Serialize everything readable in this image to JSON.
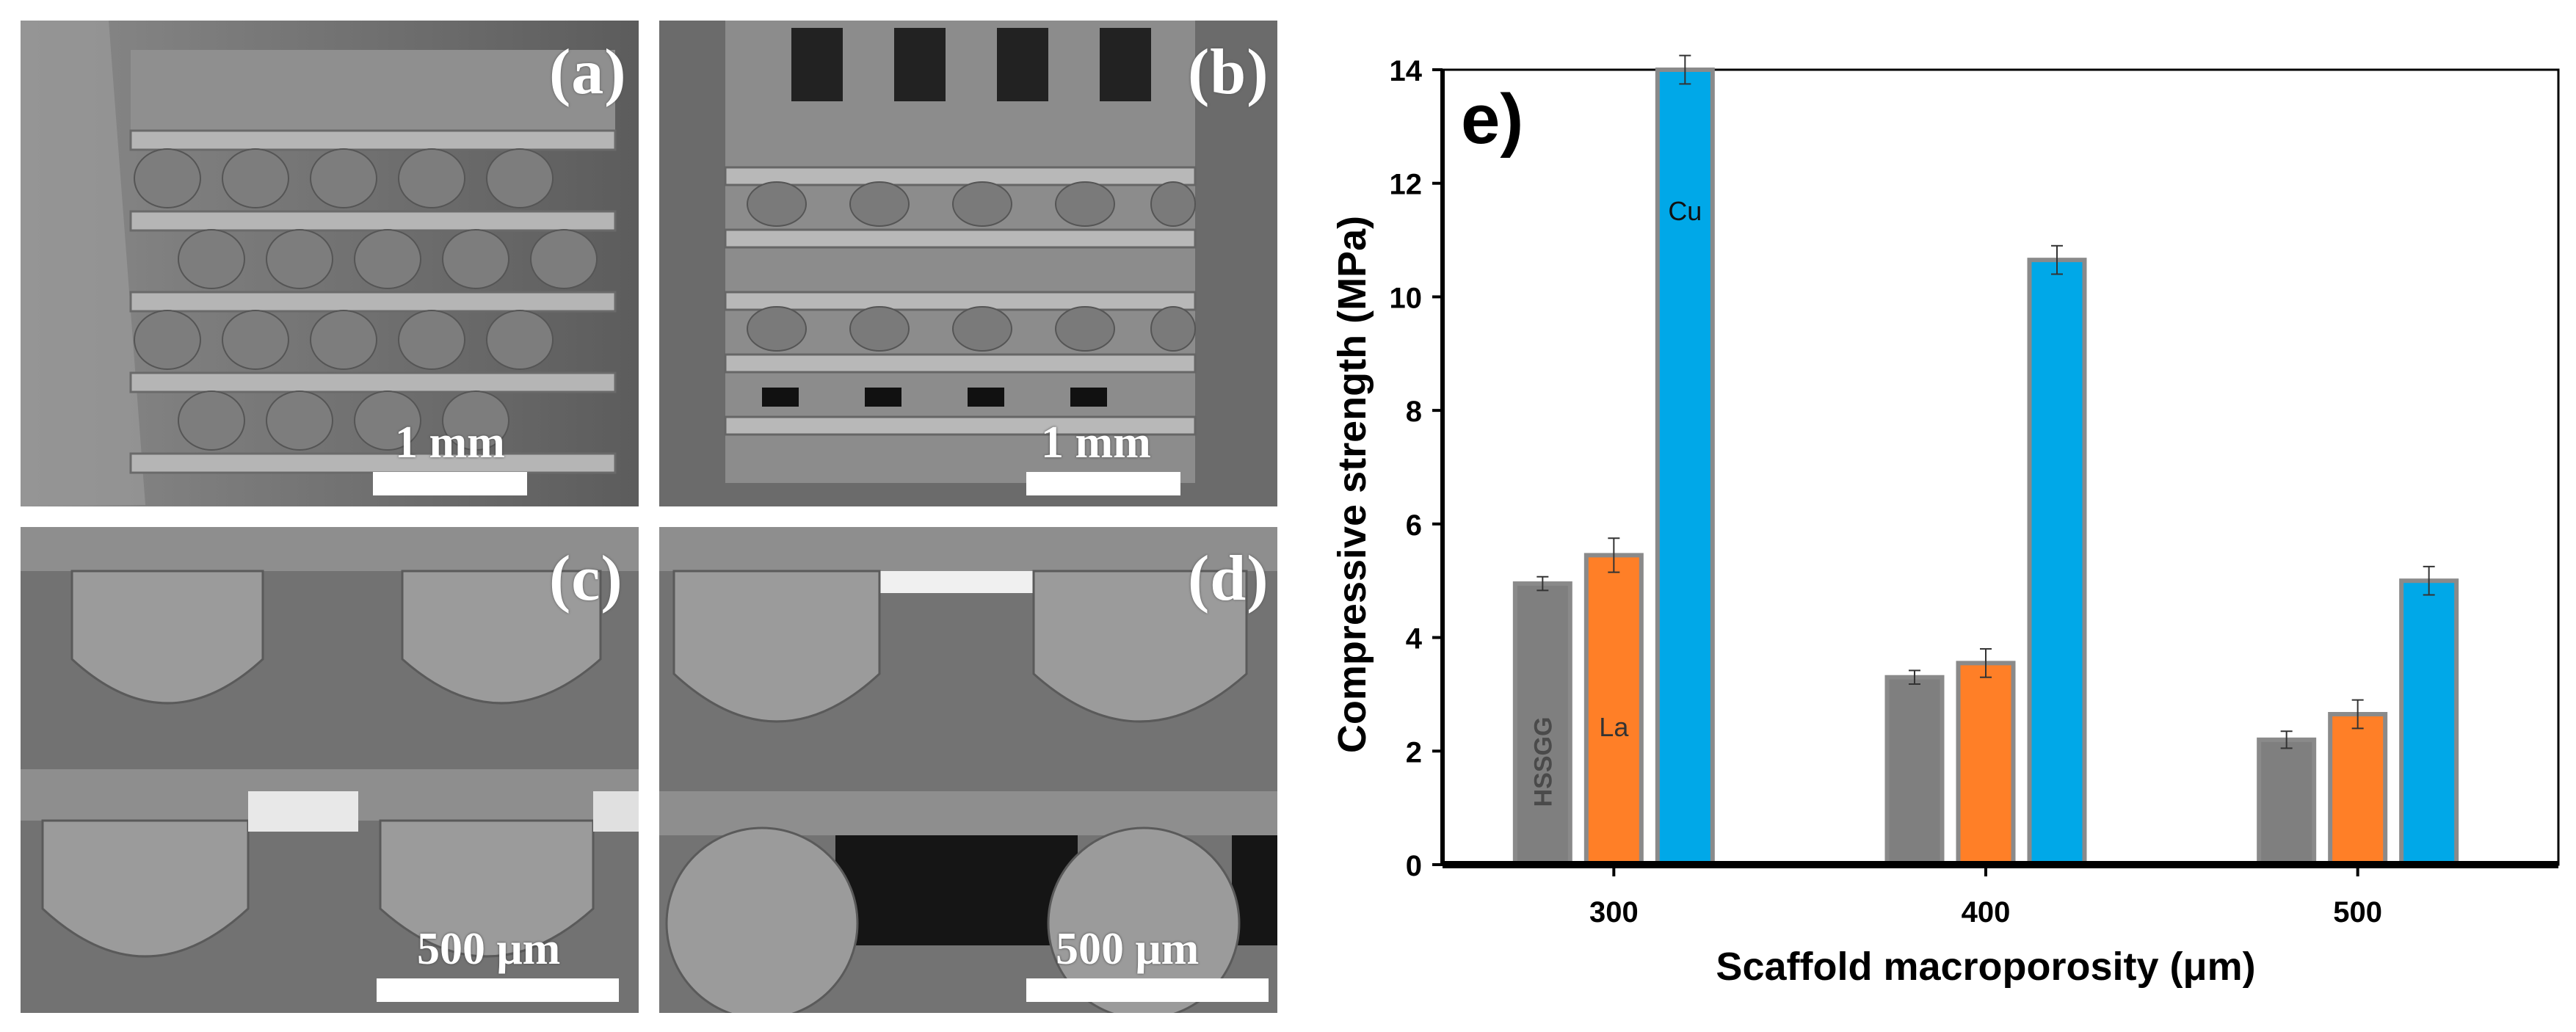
{
  "sem_panels": [
    {
      "label": "(a)",
      "scale": "1 mm"
    },
    {
      "label": "(b)",
      "scale": "1 mm"
    },
    {
      "label": "(c)",
      "scale": "500 μm"
    },
    {
      "label": "(d)",
      "scale": "500 μm"
    }
  ],
  "chart_data": {
    "type": "bar",
    "panel_label": "e)",
    "categories": [
      "300",
      "400",
      "500"
    ],
    "series": [
      {
        "name": "HSSGG",
        "values": [
          4.95,
          3.3,
          2.2
        ],
        "errors": [
          0.12,
          0.12,
          0.15
        ],
        "color": "#7f7f7f"
      },
      {
        "name": "La",
        "values": [
          5.45,
          3.55,
          2.65
        ],
        "errors": [
          0.3,
          0.25,
          0.25
        ],
        "color": "#ff7f27"
      },
      {
        "name": "Cu",
        "values": [
          14.0,
          10.65,
          5.0
        ],
        "errors": [
          0.25,
          0.25,
          0.25
        ],
        "color": "#00a8e8"
      }
    ],
    "xlabel": "Scaffold macroporosity (μm)",
    "ylabel": "Compressive strength (MPa)",
    "ylim": [
      0,
      14
    ],
    "yticks": [
      "0",
      "2",
      "4",
      "6",
      "8",
      "10",
      "12",
      "14"
    ],
    "grid": false
  }
}
